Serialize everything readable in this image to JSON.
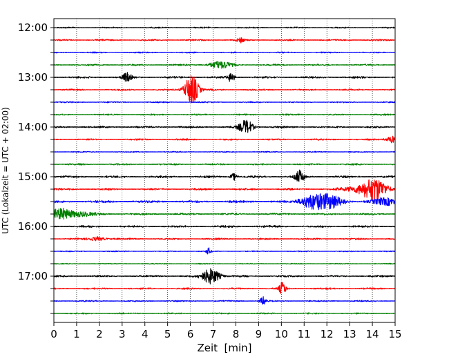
{
  "chart_data": {
    "type": "line",
    "subtype": "helicorder",
    "title": "",
    "xlabel": "Zeit  [min]",
    "ylabel": "UTC (Lokalzeit = UTC + 02:00)",
    "xlim": [
      0,
      15
    ],
    "x_ticks": [
      0,
      1,
      2,
      3,
      4,
      5,
      6,
      7,
      8,
      9,
      10,
      11,
      12,
      13,
      14,
      15
    ],
    "x_tick_labels": [
      "0",
      "1",
      "2",
      "3",
      "4",
      "5",
      "6",
      "7",
      "8",
      "9",
      "10",
      "11",
      "12",
      "13",
      "14",
      "15"
    ],
    "y_tick_labels": [
      "12:00",
      "13:00",
      "14:00",
      "15:00",
      "16:00",
      "17:00"
    ],
    "grid": "vertical dotted at each minute",
    "trace_colors": [
      "#000000",
      "#ff0000",
      "#0000ff",
      "#008000"
    ],
    "row_start_times": [
      "12:00",
      "12:15",
      "12:30",
      "12:45",
      "13:00",
      "13:15",
      "13:30",
      "13:45",
      "14:00",
      "14:15",
      "14:30",
      "14:45",
      "15:00",
      "15:15",
      "15:30",
      "15:45",
      "16:00",
      "16:15",
      "16:30",
      "16:45",
      "17:00",
      "17:15",
      "17:30",
      "17:45"
    ],
    "noise_levels": [
      0.8,
      1.0,
      0.8,
      1.0,
      1.2,
      1.0,
      0.8,
      0.9,
      1.2,
      1.0,
      0.7,
      1.0,
      1.3,
      1.2,
      1.4,
      1.2,
      1.3,
      1.0,
      0.7,
      0.6,
      1.1,
      1.0,
      0.9,
      0.9
    ],
    "events": [
      {
        "row": 1,
        "t": 8.2,
        "amp": 4,
        "dur": 0.15
      },
      {
        "row": 3,
        "t": 7.3,
        "amp": 5,
        "dur": 0.5
      },
      {
        "row": 4,
        "t": 3.2,
        "amp": 6,
        "dur": 0.2
      },
      {
        "row": 4,
        "t": 7.8,
        "amp": 7,
        "dur": 0.15
      },
      {
        "row": 5,
        "t": 6.05,
        "amp": 22,
        "dur": 0.3
      },
      {
        "row": 8,
        "t": 8.45,
        "amp": 10,
        "dur": 0.3
      },
      {
        "row": 9,
        "t": 14.9,
        "amp": 5,
        "dur": 0.3
      },
      {
        "row": 12,
        "t": 7.9,
        "amp": 5,
        "dur": 0.15
      },
      {
        "row": 12,
        "t": 10.8,
        "amp": 9,
        "dur": 0.2
      },
      {
        "row": 13,
        "t": 13.6,
        "amp": 5,
        "dur": 0.8
      },
      {
        "row": 13,
        "t": 14.1,
        "amp": 13,
        "dur": 0.5
      },
      {
        "row": 14,
        "t": 11.3,
        "amp": 9,
        "dur": 0.5
      },
      {
        "row": 14,
        "t": 12.1,
        "amp": 10,
        "dur": 0.6
      },
      {
        "row": 14,
        "t": 14.6,
        "amp": 5,
        "dur": 0.6
      },
      {
        "row": 15,
        "t": 0.3,
        "amp": 8,
        "dur": 0.5
      },
      {
        "row": 15,
        "t": 1.2,
        "amp": 3,
        "dur": 0.6
      },
      {
        "row": 17,
        "t": 1.9,
        "amp": 3,
        "dur": 0.4
      },
      {
        "row": 18,
        "t": 6.8,
        "amp": 5,
        "dur": 0.1
      },
      {
        "row": 20,
        "t": 6.9,
        "amp": 11,
        "dur": 0.4
      },
      {
        "row": 21,
        "t": 10.05,
        "amp": 9,
        "dur": 0.15
      },
      {
        "row": 22,
        "t": 9.2,
        "amp": 6,
        "dur": 0.15
      }
    ]
  }
}
